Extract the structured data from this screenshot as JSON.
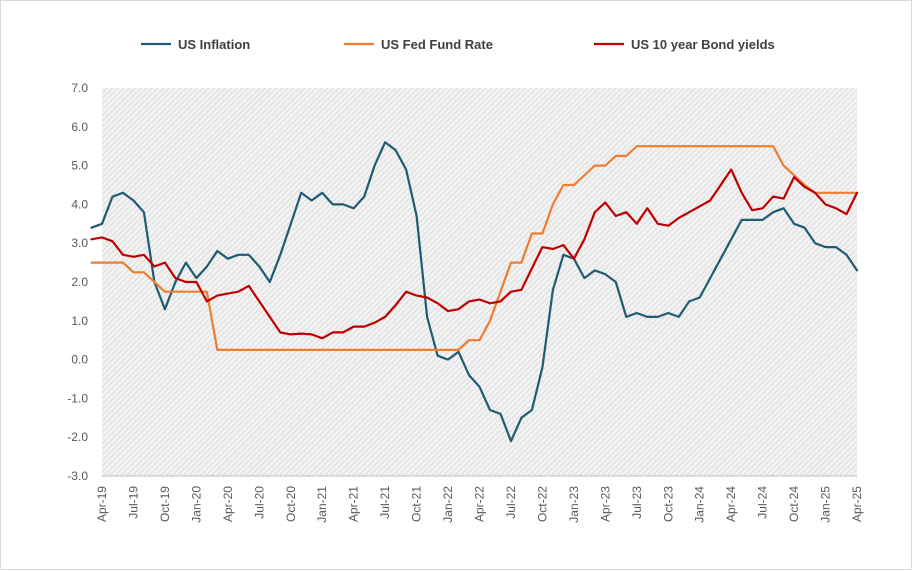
{
  "chart_data": {
    "type": "line",
    "title": "",
    "xlabel": "",
    "ylabel": "",
    "ylim": [
      -3.0,
      7.0
    ],
    "y_ticks": [
      "7.0",
      "6.0",
      "5.0",
      "4.0",
      "3.0",
      "2.0",
      "1.0",
      "0.0",
      "-1.0",
      "-2.0",
      "-3.0"
    ],
    "x_range": [
      "2019-04",
      "2025-04"
    ],
    "x_tick_labels": [
      "Apr-19",
      "Jul-19",
      "Oct-19",
      "Jan-20",
      "Apr-20",
      "Jul-20",
      "Oct-20",
      "Jan-21",
      "Apr-21",
      "Jul-21",
      "Oct-21",
      "Jan-22",
      "Apr-22",
      "Jul-22",
      "Oct-22",
      "Jan-23",
      "Apr-23",
      "Jul-23",
      "Oct-23",
      "Jan-24",
      "Apr-24",
      "Jul-24",
      "Oct-24",
      "Jan-25",
      "Apr-25"
    ],
    "grid": "hatched plot area",
    "legend_position": "top",
    "series": [
      {
        "name": "US Inflation",
        "color": "#1f5b73",
        "values": [
          [
            "2019-03",
            3.4
          ],
          [
            "2019-04",
            3.5
          ],
          [
            "2019-05",
            4.2
          ],
          [
            "2019-06",
            4.3
          ],
          [
            "2019-07",
            4.1
          ],
          [
            "2019-08",
            3.8
          ],
          [
            "2019-09",
            2.0
          ],
          [
            "2019-10",
            1.3
          ],
          [
            "2019-11",
            2.0
          ],
          [
            "2019-12",
            2.5
          ],
          [
            "2020-01",
            2.1
          ],
          [
            "2020-02",
            2.4
          ],
          [
            "2020-03",
            2.8
          ],
          [
            "2020-04",
            2.6
          ],
          [
            "2020-05",
            2.7
          ],
          [
            "2020-06",
            2.7
          ],
          [
            "2020-07",
            2.4
          ],
          [
            "2020-08",
            2.0
          ],
          [
            "2020-09",
            2.7
          ],
          [
            "2020-10",
            3.5
          ],
          [
            "2020-11",
            4.3
          ],
          [
            "2020-12",
            4.1
          ],
          [
            "2021-01",
            4.3
          ],
          [
            "2021-02",
            4.0
          ],
          [
            "2021-03",
            4.0
          ],
          [
            "2021-04",
            3.9
          ],
          [
            "2021-05",
            4.2
          ],
          [
            "2021-06",
            5.0
          ],
          [
            "2021-07",
            5.6
          ],
          [
            "2021-08",
            5.4
          ],
          [
            "2021-09",
            4.9
          ],
          [
            "2021-10",
            3.7
          ],
          [
            "2021-11",
            1.1
          ],
          [
            "2021-12",
            0.1
          ],
          [
            "2022-01",
            0.0
          ],
          [
            "2022-02",
            0.2
          ],
          [
            "2022-03",
            -0.4
          ],
          [
            "2022-04",
            -0.7
          ],
          [
            "2022-05",
            -1.3
          ],
          [
            "2022-06",
            -1.4
          ],
          [
            "2022-07",
            -2.1
          ],
          [
            "2022-08",
            -1.5
          ],
          [
            "2022-09",
            -1.3
          ],
          [
            "2022-10",
            -0.2
          ],
          [
            "2022-11",
            1.8
          ],
          [
            "2022-12",
            2.7
          ],
          [
            "2023-01",
            2.6
          ],
          [
            "2023-02",
            2.1
          ],
          [
            "2023-03",
            2.3
          ],
          [
            "2023-04",
            2.2
          ],
          [
            "2023-05",
            2.0
          ],
          [
            "2023-06",
            1.1
          ],
          [
            "2023-07",
            1.2
          ],
          [
            "2023-08",
            1.1
          ],
          [
            "2023-09",
            1.1
          ],
          [
            "2023-10",
            1.2
          ],
          [
            "2023-11",
            1.1
          ],
          [
            "2023-12",
            1.5
          ],
          [
            "2024-01",
            1.6
          ],
          [
            "2024-02",
            2.1
          ],
          [
            "2024-03",
            2.6
          ],
          [
            "2024-04",
            3.1
          ],
          [
            "2024-05",
            3.6
          ],
          [
            "2024-06",
            3.6
          ],
          [
            "2024-07",
            3.6
          ],
          [
            "2024-08",
            3.8
          ],
          [
            "2024-09",
            3.9
          ],
          [
            "2024-10",
            3.5
          ],
          [
            "2024-11",
            3.4
          ],
          [
            "2024-12",
            3.0
          ],
          [
            "2025-01",
            2.9
          ],
          [
            "2025-02",
            2.9
          ],
          [
            "2025-03",
            2.7
          ],
          [
            "2025-04",
            2.3
          ]
        ]
      },
      {
        "name": "US Fed Fund Rate",
        "color": "#ed7d31",
        "values": [
          [
            "2019-03",
            2.5
          ],
          [
            "2019-04",
            2.5
          ],
          [
            "2019-05",
            2.5
          ],
          [
            "2019-06",
            2.5
          ],
          [
            "2019-07",
            2.25
          ],
          [
            "2019-08",
            2.25
          ],
          [
            "2019-09",
            2.0
          ],
          [
            "2019-10",
            1.75
          ],
          [
            "2019-11",
            1.75
          ],
          [
            "2019-12",
            1.75
          ],
          [
            "2020-01",
            1.75
          ],
          [
            "2020-02",
            1.75
          ],
          [
            "2020-03",
            0.25
          ],
          [
            "2020-04",
            0.25
          ],
          [
            "2020-05",
            0.25
          ],
          [
            "2020-06",
            0.25
          ],
          [
            "2020-07",
            0.25
          ],
          [
            "2020-08",
            0.25
          ],
          [
            "2020-09",
            0.25
          ],
          [
            "2020-10",
            0.25
          ],
          [
            "2020-11",
            0.25
          ],
          [
            "2020-12",
            0.25
          ],
          [
            "2021-01",
            0.25
          ],
          [
            "2021-02",
            0.25
          ],
          [
            "2021-03",
            0.25
          ],
          [
            "2021-04",
            0.25
          ],
          [
            "2021-05",
            0.25
          ],
          [
            "2021-06",
            0.25
          ],
          [
            "2021-07",
            0.25
          ],
          [
            "2021-08",
            0.25
          ],
          [
            "2021-09",
            0.25
          ],
          [
            "2021-10",
            0.25
          ],
          [
            "2021-11",
            0.25
          ],
          [
            "2021-12",
            0.25
          ],
          [
            "2022-01",
            0.25
          ],
          [
            "2022-02",
            0.25
          ],
          [
            "2022-03",
            0.5
          ],
          [
            "2022-04",
            0.5
          ],
          [
            "2022-05",
            1.0
          ],
          [
            "2022-06",
            1.75
          ],
          [
            "2022-07",
            2.5
          ],
          [
            "2022-08",
            2.5
          ],
          [
            "2022-09",
            3.25
          ],
          [
            "2022-10",
            3.25
          ],
          [
            "2022-11",
            4.0
          ],
          [
            "2022-12",
            4.5
          ],
          [
            "2023-01",
            4.5
          ],
          [
            "2023-02",
            4.75
          ],
          [
            "2023-03",
            5.0
          ],
          [
            "2023-04",
            5.0
          ],
          [
            "2023-05",
            5.25
          ],
          [
            "2023-06",
            5.25
          ],
          [
            "2023-07",
            5.5
          ],
          [
            "2023-08",
            5.5
          ],
          [
            "2023-09",
            5.5
          ],
          [
            "2023-10",
            5.5
          ],
          [
            "2023-11",
            5.5
          ],
          [
            "2023-12",
            5.5
          ],
          [
            "2024-01",
            5.5
          ],
          [
            "2024-02",
            5.5
          ],
          [
            "2024-03",
            5.5
          ],
          [
            "2024-04",
            5.5
          ],
          [
            "2024-05",
            5.5
          ],
          [
            "2024-06",
            5.5
          ],
          [
            "2024-07",
            5.5
          ],
          [
            "2024-08",
            5.5
          ],
          [
            "2024-09",
            5.0
          ],
          [
            "2024-10",
            4.75
          ],
          [
            "2024-11",
            4.5
          ],
          [
            "2024-12",
            4.3
          ],
          [
            "2025-01",
            4.3
          ],
          [
            "2025-02",
            4.3
          ],
          [
            "2025-03",
            4.3
          ],
          [
            "2025-04",
            4.3
          ]
        ]
      },
      {
        "name": "US 10 year Bond yields",
        "color": "#c00000",
        "values": [
          [
            "2019-03",
            3.1
          ],
          [
            "2019-04",
            3.15
          ],
          [
            "2019-05",
            3.05
          ],
          [
            "2019-06",
            2.7
          ],
          [
            "2019-07",
            2.65
          ],
          [
            "2019-08",
            2.7
          ],
          [
            "2019-09",
            2.4
          ],
          [
            "2019-10",
            2.5
          ],
          [
            "2019-11",
            2.1
          ],
          [
            "2019-12",
            2.0
          ],
          [
            "2020-01",
            2.0
          ],
          [
            "2020-02",
            1.5
          ],
          [
            "2020-03",
            1.65
          ],
          [
            "2020-04",
            1.7
          ],
          [
            "2020-05",
            1.75
          ],
          [
            "2020-06",
            1.9
          ],
          [
            "2020-07",
            1.5
          ],
          [
            "2020-08",
            1.1
          ],
          [
            "2020-09",
            0.7
          ],
          [
            "2020-10",
            0.65
          ],
          [
            "2020-11",
            0.67
          ],
          [
            "2020-12",
            0.65
          ],
          [
            "2021-01",
            0.55
          ],
          [
            "2021-02",
            0.7
          ],
          [
            "2021-03",
            0.7
          ],
          [
            "2021-04",
            0.85
          ],
          [
            "2021-05",
            0.85
          ],
          [
            "2021-06",
            0.95
          ],
          [
            "2021-07",
            1.1
          ],
          [
            "2021-08",
            1.4
          ],
          [
            "2021-09",
            1.75
          ],
          [
            "2021-10",
            1.65
          ],
          [
            "2021-11",
            1.6
          ],
          [
            "2021-12",
            1.45
          ],
          [
            "2022-01",
            1.25
          ],
          [
            "2022-02",
            1.3
          ],
          [
            "2022-03",
            1.5
          ],
          [
            "2022-04",
            1.55
          ],
          [
            "2022-05",
            1.45
          ],
          [
            "2022-06",
            1.5
          ],
          [
            "2022-07",
            1.75
          ],
          [
            "2022-08",
            1.8
          ],
          [
            "2022-09",
            2.35
          ],
          [
            "2022-10",
            2.9
          ],
          [
            "2022-11",
            2.85
          ],
          [
            "2022-12",
            2.95
          ],
          [
            "2023-01",
            2.6
          ],
          [
            "2023-02",
            3.1
          ],
          [
            "2023-03",
            3.8
          ],
          [
            "2023-04",
            4.05
          ],
          [
            "2023-05",
            3.7
          ],
          [
            "2023-06",
            3.8
          ],
          [
            "2023-07",
            3.5
          ],
          [
            "2023-08",
            3.9
          ],
          [
            "2023-09",
            3.5
          ],
          [
            "2023-10",
            3.45
          ],
          [
            "2023-11",
            3.65
          ],
          [
            "2023-12",
            3.8
          ],
          [
            "2024-01",
            3.95
          ],
          [
            "2024-02",
            4.1
          ],
          [
            "2024-03",
            4.5
          ],
          [
            "2024-04",
            4.9
          ],
          [
            "2024-05",
            4.3
          ],
          [
            "2024-06",
            3.85
          ],
          [
            "2024-07",
            3.9
          ],
          [
            "2024-08",
            4.2
          ],
          [
            "2024-09",
            4.15
          ],
          [
            "2024-10",
            4.7
          ],
          [
            "2024-11",
            4.45
          ],
          [
            "2024-12",
            4.3
          ],
          [
            "2025-01",
            4.0
          ],
          [
            "2025-02",
            3.9
          ],
          [
            "2025-03",
            3.75
          ],
          [
            "2025-04",
            4.3
          ]
        ]
      }
    ]
  }
}
